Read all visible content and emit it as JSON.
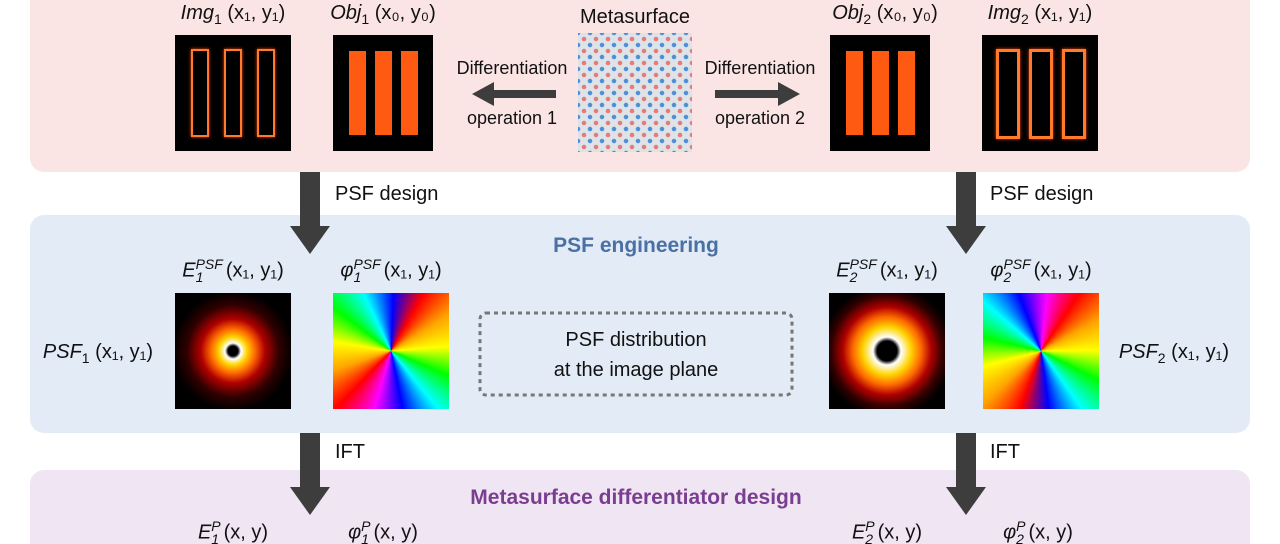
{
  "top_panel": {
    "metasurface_label": "Metasurface",
    "left_operation": [
      "Differentiation",
      "operation 1"
    ],
    "right_operation": [
      "Differentiation",
      "operation 2"
    ],
    "img1": {
      "name": "Img",
      "sub": "1",
      "args": "(x₁, y₁)"
    },
    "obj1": {
      "name": "Obj",
      "sub": "1",
      "args": "(x₀, y₀)"
    },
    "obj2": {
      "name": "Obj",
      "sub": "2",
      "args": "(x₀, y₀)"
    },
    "img2": {
      "name": "Img",
      "sub": "2",
      "args": "(x₁, y₁)"
    }
  },
  "arrows": {
    "left_1": "PSF design",
    "right_1": "PSF design",
    "left_2": "IFT",
    "right_2": "IFT"
  },
  "psf_panel": {
    "title": "PSF engineering",
    "e1": {
      "name": "E",
      "sub": "1",
      "sup": "PSF",
      "args": "(x₁, y₁)"
    },
    "phi1": {
      "name": "φ",
      "sub": "1",
      "sup": "PSF",
      "args": "(x₁, y₁)"
    },
    "e2": {
      "name": "E",
      "sub": "2",
      "sup": "PSF",
      "args": "(x₁, y₁)"
    },
    "phi2": {
      "name": "φ",
      "sub": "2",
      "sup": "PSF",
      "args": "(x₁, y₁)"
    },
    "psf1": {
      "name": "PSF",
      "sub": "1",
      "args": "(x₁, y₁)"
    },
    "psf2": {
      "name": "PSF",
      "sub": "2",
      "args": "(x₁, y₁)"
    },
    "box": [
      "PSF distribution",
      "at the image plane"
    ]
  },
  "bottom_panel": {
    "title": "Metasurface differentiator design",
    "e1": {
      "name": "E",
      "sub": "1",
      "sup": "P",
      "args": "(x, y)"
    },
    "phi1": {
      "name": "φ",
      "sub": "1",
      "sup": "P",
      "args": "(x, y)"
    },
    "e2": {
      "name": "E",
      "sub": "2",
      "sup": "P",
      "args": "(x, y)"
    },
    "phi2": {
      "name": "φ",
      "sub": "2",
      "sup": "P",
      "args": "(x, y)"
    }
  }
}
